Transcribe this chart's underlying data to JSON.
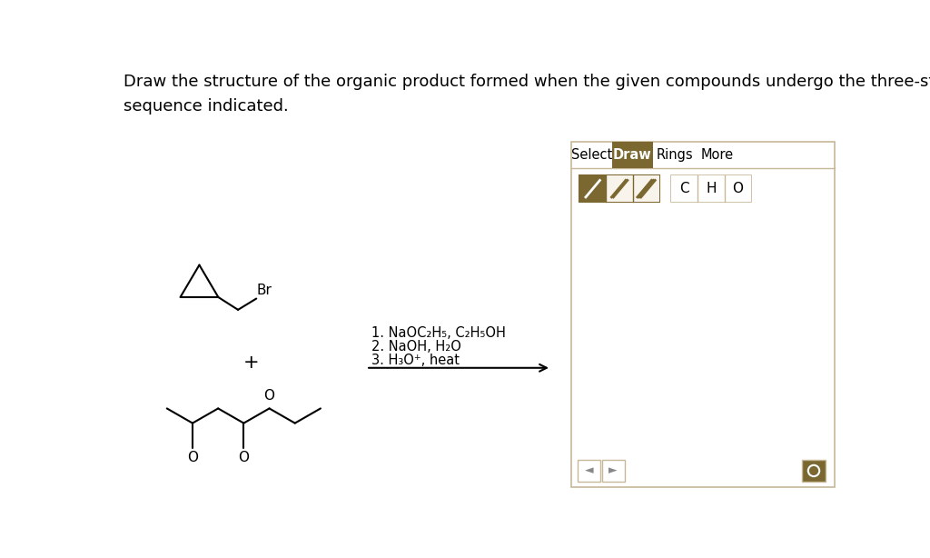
{
  "title_text": "Draw the structure of the organic product formed when the given compounds undergo the three-step reaction\nsequence indicated.",
  "title_fontsize": 13,
  "bg_color": "#ffffff",
  "text_color": "#000000",
  "reaction_steps": [
    "1. NaOC₂H₅, C₂H₅OH",
    "2. NaOH, H₂O",
    "3. H₃O⁺, heat"
  ],
  "panel_border_color": "#c8b89a",
  "tab_active_color": "#7a6830",
  "tab_active_text": "#ffffff",
  "tab_inactive_text": "#000000",
  "tabs": [
    "Select",
    "Draw",
    "Rings",
    "More"
  ],
  "bond_button_color": "#7a6830",
  "element_buttons": [
    "C",
    "H",
    "O"
  ]
}
